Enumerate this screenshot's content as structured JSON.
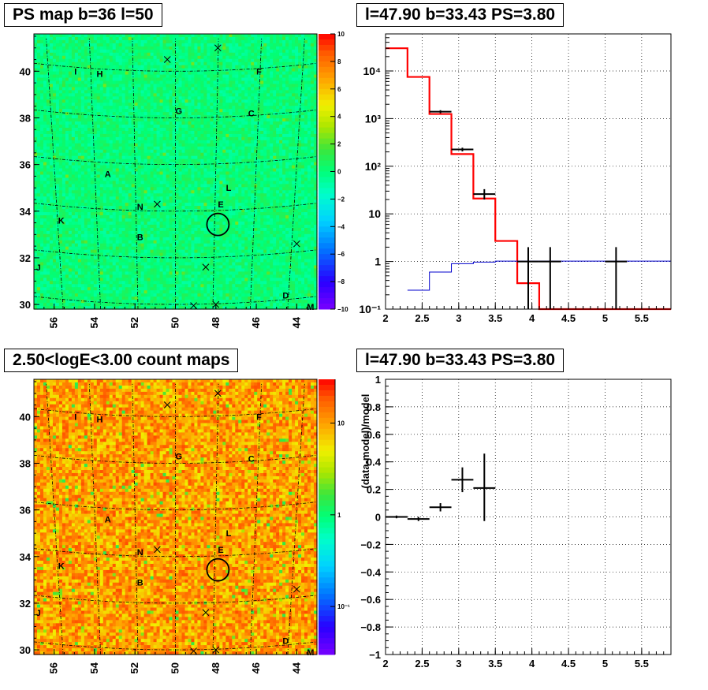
{
  "panels": {
    "ps_map_title": "PS map b=36 l=50",
    "spectrum_title": "l=47.90 b=33.43 PS=3.80",
    "count_map_title": "2.50<logE<3.00 count maps",
    "residual_title": "l=47.90 b=33.43 PS=3.80"
  },
  "maps": {
    "x_ticks": [
      "56",
      "54",
      "52",
      "50",
      "48",
      "46",
      "44"
    ],
    "y_ticks": [
      "30",
      "32",
      "34",
      "36",
      "38",
      "40"
    ],
    "source_labels": [
      "I",
      "H",
      "F",
      "G",
      "C",
      "A",
      "L",
      "E",
      "N",
      "K",
      "B",
      "J",
      "D",
      "M"
    ],
    "marked_position": {
      "l": 47.9,
      "b": 33.43
    }
  },
  "colorbars": {
    "ps_ticks": [
      "10",
      "8",
      "6",
      "4",
      "2",
      "0",
      "−2",
      "−4",
      "−6",
      "−8",
      "−10"
    ],
    "count_ticks": [
      "10",
      "1",
      "10⁻¹"
    ]
  },
  "chart_data": [
    {
      "type": "heatmap",
      "title": "PS map b=36 l=50",
      "xlim": [
        57,
        43
      ],
      "ylim": [
        29.8,
        41.6
      ],
      "zlim": [
        -10,
        10
      ],
      "x_ticks": [
        56,
        54,
        52,
        50,
        48,
        46,
        44
      ],
      "y_ticks": [
        30,
        32,
        34,
        36,
        38,
        40
      ],
      "typical_value": 0,
      "annotations": [
        "I",
        "H",
        "F",
        "G",
        "C",
        "A",
        "L",
        "E",
        "N",
        "K",
        "B",
        "J",
        "D",
        "M"
      ]
    },
    {
      "type": "line",
      "title": "l=47.90 b=33.43 PS=3.80",
      "log_y": true,
      "xlim": [
        2,
        5.9
      ],
      "ylim": [
        0.1,
        60000
      ],
      "x_ticks": [
        "2",
        "2.5",
        "3",
        "3.5",
        "4",
        "4.5",
        "5",
        "5.5"
      ],
      "y_ticks": [
        "10⁻¹",
        "1",
        "10",
        "10²",
        "10³",
        "10⁴"
      ],
      "grid": true,
      "series": [
        {
          "role": "model_total",
          "color": "#ff0000",
          "steps": [
            {
              "x0": 2.0,
              "x1": 2.3,
              "y": 30000
            },
            {
              "x0": 2.3,
              "x1": 2.6,
              "y": 7500
            },
            {
              "x0": 2.6,
              "x1": 2.9,
              "y": 1250
            },
            {
              "x0": 2.9,
              "x1": 3.2,
              "y": 180
            },
            {
              "x0": 3.2,
              "x1": 3.5,
              "y": 21
            },
            {
              "x0": 3.5,
              "x1": 3.8,
              "y": 2.7
            },
            {
              "x0": 3.8,
              "x1": 4.1,
              "y": 0.35
            },
            {
              "x0": 4.1,
              "x1": 4.4,
              "y": 0.1
            },
            {
              "x0": 4.4,
              "x1": 5.9,
              "y": 0.1
            }
          ]
        },
        {
          "role": "point_source",
          "color": "#0000cc",
          "steps": [
            {
              "x0": 2.3,
              "x1": 2.6,
              "y": 0.25
            },
            {
              "x0": 2.6,
              "x1": 2.9,
              "y": 0.6
            },
            {
              "x0": 2.9,
              "x1": 3.2,
              "y": 0.9
            },
            {
              "x0": 3.2,
              "x1": 3.5,
              "y": 0.97
            },
            {
              "x0": 3.5,
              "x1": 5.9,
              "y": 1.02
            }
          ]
        },
        {
          "role": "data",
          "color": "#000000",
          "points": [
            {
              "x": 2.75,
              "xlo": 2.6,
              "xhi": 2.9,
              "y": 1400,
              "ylo": 1300,
              "yhi": 1500
            },
            {
              "x": 3.05,
              "xlo": 2.9,
              "xhi": 3.2,
              "y": 225,
              "ylo": 205,
              "yhi": 245
            },
            {
              "x": 3.35,
              "xlo": 3.2,
              "xhi": 3.5,
              "y": 26,
              "ylo": 20,
              "yhi": 33
            },
            {
              "x": 3.95,
              "xlo": 3.8,
              "xhi": 4.1,
              "y": 1,
              "ylo": 0.1,
              "yhi": 2
            },
            {
              "x": 4.25,
              "xlo": 4.1,
              "xhi": 4.4,
              "y": 1,
              "ylo": 0.1,
              "yhi": 2
            },
            {
              "x": 5.15,
              "xlo": 5.0,
              "xhi": 5.3,
              "y": 1,
              "ylo": 0.1,
              "yhi": 2
            }
          ]
        }
      ]
    },
    {
      "type": "heatmap",
      "title": "2.50<logE<3.00 count maps",
      "xlim": [
        57,
        43
      ],
      "ylim": [
        29.8,
        41.6
      ],
      "log_z": true,
      "zlim": [
        0.03,
        30
      ],
      "x_ticks": [
        56,
        54,
        52,
        50,
        48,
        46,
        44
      ],
      "y_ticks": [
        30,
        32,
        34,
        36,
        38,
        40
      ],
      "annotations": [
        "I",
        "H",
        "F",
        "G",
        "C",
        "A",
        "L",
        "E",
        "N",
        "K",
        "B",
        "J",
        "D",
        "M"
      ]
    },
    {
      "type": "scatter",
      "title": "l=47.90 b=33.43 PS=3.80",
      "ylabel": "(data-model)/model",
      "xlim": [
        2,
        5.9
      ],
      "ylim": [
        -1,
        1
      ],
      "x_ticks": [
        "2",
        "2.5",
        "3",
        "3.5",
        "4",
        "4.5",
        "5",
        "5.5"
      ],
      "y_ticks": [
        "−1",
        "−0.8",
        "−0.6",
        "−0.4",
        "−0.2",
        "0",
        "0.2",
        "0.4",
        "0.6",
        "0.8",
        "1"
      ],
      "grid": true,
      "points": [
        {
          "x": 2.15,
          "xlo": 2.0,
          "xhi": 2.3,
          "y": 0.0,
          "ylo": -0.01,
          "yhi": 0.01
        },
        {
          "x": 2.45,
          "xlo": 2.3,
          "xhi": 2.6,
          "y": -0.015,
          "ylo": -0.03,
          "yhi": 0.0
        },
        {
          "x": 2.75,
          "xlo": 2.6,
          "xhi": 2.9,
          "y": 0.07,
          "ylo": 0.04,
          "yhi": 0.1
        },
        {
          "x": 3.05,
          "xlo": 2.9,
          "xhi": 3.2,
          "y": 0.27,
          "ylo": 0.18,
          "yhi": 0.36
        },
        {
          "x": 3.35,
          "xlo": 3.2,
          "xhi": 3.5,
          "y": 0.21,
          "ylo": -0.03,
          "yhi": 0.46
        }
      ]
    }
  ]
}
